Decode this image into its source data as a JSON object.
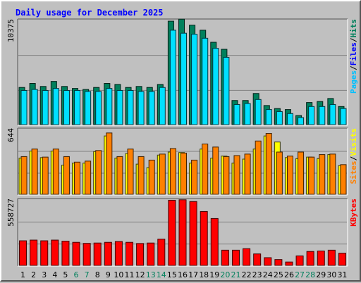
{
  "chart_data": {
    "type": "bar",
    "title": "Daily usage for December 2025",
    "colors": {
      "hits": "#00805c",
      "files": "#00e0ff",
      "sites": "#ff8000",
      "visits": "#ffff00",
      "kbytes": "#ff0000",
      "weekday_label": "#000000",
      "weekend_label": "#00805c"
    },
    "categories": [
      "1",
      "2",
      "3",
      "4",
      "5",
      "6",
      "7",
      "8",
      "9",
      "10",
      "11",
      "12",
      "13",
      "14",
      "15",
      "16",
      "17",
      "18",
      "19",
      "20",
      "21",
      "22",
      "23",
      "24",
      "25",
      "26",
      "27",
      "28",
      "29",
      "30",
      "31"
    ],
    "weekend_days": [
      "6",
      "7",
      "13",
      "14",
      "20",
      "21",
      "27",
      "28"
    ],
    "panels": [
      {
        "key": "hits_files",
        "ymax_label": "10375",
        "ylim": [
          0,
          10375
        ],
        "legend": [
          {
            "text": "Pages",
            "color": "#00c0ff"
          },
          {
            "text": "/",
            "color": "#000000"
          },
          {
            "text": "Files",
            "color": "#0000ff"
          },
          {
            "text": "/",
            "color": "#000000"
          },
          {
            "text": "Hits",
            "color": "#00805c"
          }
        ],
        "series": [
          {
            "name": "Hits",
            "color": "#00805c",
            "values": [
              3700,
              4100,
              3800,
              4300,
              3800,
              3600,
              3500,
              3700,
              4100,
              4000,
              3700,
              3800,
              3700,
              4000,
              10300,
              10500,
              9900,
              9400,
              8200,
              7500,
              2400,
              2400,
              3100,
              1900,
              1600,
              1500,
              900,
              2200,
              2300,
              2600,
              1800
            ]
          },
          {
            "name": "Files",
            "color": "#00e0ff",
            "values": [
              3400,
              3500,
              3400,
              3600,
              3400,
              3400,
              3300,
              3300,
              3600,
              3400,
              3400,
              3300,
              3300,
              3700,
              9400,
              9100,
              9000,
              8600,
              7600,
              6700,
              2000,
              2100,
              2500,
              1500,
              1300,
              1100,
              700,
              1800,
              1800,
              2000,
              1600
            ]
          },
          {
            "name": "Pages",
            "color": "#0000ff",
            "values": [
              0,
              0,
              0,
              0,
              0,
              0,
              0,
              0,
              0,
              0,
              0,
              0,
              0,
              0,
              0,
              0,
              0,
              0,
              0,
              0,
              0,
              0,
              0,
              0,
              0,
              0,
              0,
              0,
              0,
              0,
              0
            ]
          }
        ]
      },
      {
        "key": "sites_visits",
        "ymax_label": "644",
        "ylim": [
          0,
          644
        ],
        "legend": [
          {
            "text": "Sites",
            "color": "#ff8000"
          },
          {
            "text": "/",
            "color": "#000000"
          },
          {
            "text": "Visits",
            "color": "#ffff00"
          }
        ],
        "series": [
          {
            "name": "Visits",
            "color": "#ffff00",
            "values": [
              360,
              430,
              365,
              430,
              290,
              310,
              310,
              425,
              580,
              360,
              405,
              300,
              265,
              390,
              420,
              415,
              310,
              450,
              360,
              380,
              310,
              350,
              450,
              580,
              520,
              365,
              355,
              370,
              355,
              395,
              285
            ]
          },
          {
            "name": "Sites",
            "color": "#ff8000",
            "values": [
              375,
              450,
              370,
              450,
              375,
              320,
              330,
              435,
              610,
              375,
              450,
              375,
              340,
              400,
              455,
              410,
              340,
              500,
              470,
              375,
              385,
              400,
              530,
              605,
              420,
              380,
              420,
              370,
              395,
              400,
              295
            ]
          }
        ]
      },
      {
        "key": "kbytes",
        "ymax_label": "558727",
        "ylim": [
          0,
          558727
        ],
        "legend": [
          {
            "text": "KBytes",
            "color": "#ff0000"
          }
        ],
        "series": [
          {
            "name": "KBytes",
            "color": "#ff0000",
            "values": [
              210000,
              216000,
              210000,
              216000,
              207000,
              197000,
              188000,
              191000,
              197000,
              204000,
              197000,
              187000,
              191000,
              224000,
              556000,
              560000,
              545000,
              460000,
              400000,
              130000,
              130000,
              143000,
              98000,
              66000,
              50000,
              29000,
              81000,
              119000,
              123000,
              130000,
              104000
            ]
          }
        ]
      }
    ]
  }
}
